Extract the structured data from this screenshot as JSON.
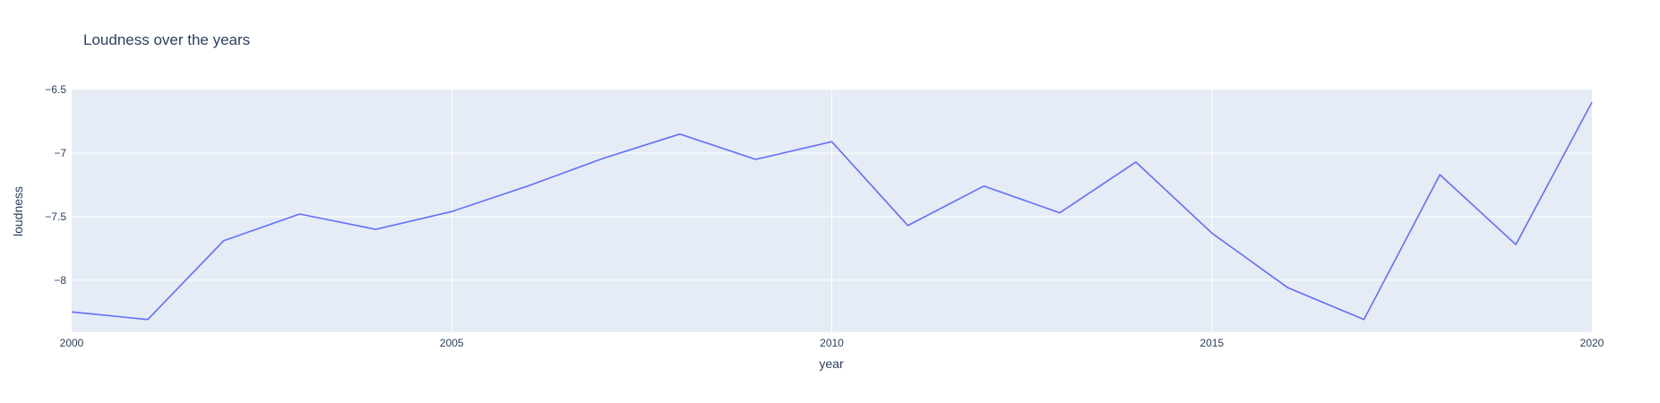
{
  "chart_data": {
    "type": "line",
    "title": "Loudness over the years",
    "xlabel": "year",
    "ylabel": "loudness",
    "xlim": [
      2000,
      2020
    ],
    "ylim": [
      -8.41,
      -6.5
    ],
    "x_ticks": [
      2000,
      2005,
      2010,
      2015,
      2020
    ],
    "x_tick_labels": [
      "2000",
      "2005",
      "2010",
      "2015",
      "2020"
    ],
    "y_ticks": [
      -6.5,
      -7,
      -7.5,
      -8
    ],
    "y_tick_labels": [
      "−6.5",
      "−7",
      "−7.5",
      "−8"
    ],
    "grid": true,
    "legend": "none",
    "series": [
      {
        "x": [
          2000,
          2001,
          2002,
          2003,
          2004,
          2005,
          2006,
          2007,
          2008,
          2009,
          2010,
          2011,
          2012,
          2013,
          2014,
          2015,
          2016,
          2017,
          2018,
          2019,
          2020
        ],
        "values": [
          -8.25,
          -8.31,
          -7.69,
          -7.48,
          -7.6,
          -7.46,
          -7.26,
          -7.04,
          -6.85,
          -7.05,
          -6.91,
          -7.57,
          -7.26,
          -7.47,
          -7.07,
          -7.63,
          -8.06,
          -8.31,
          -7.17,
          -7.72,
          -6.6
        ],
        "color": "#636efa"
      }
    ],
    "colors": {
      "plot_background": "#e5ecf6",
      "grid": "#ffffff",
      "text": "#2a3f5f",
      "line": "#636efa"
    }
  }
}
